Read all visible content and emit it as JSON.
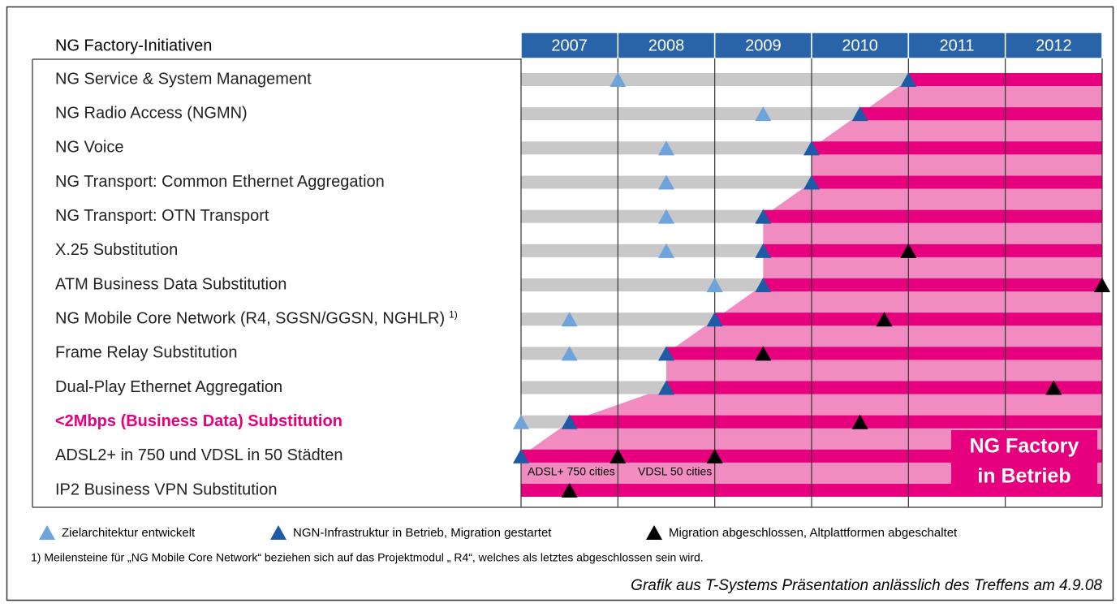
{
  "title": "NG Factory-Initiativen",
  "years": [
    2007,
    2008,
    2009,
    2010,
    2011,
    2012
  ],
  "rows": [
    {
      "label": "NG Service & System Management",
      "milestones": [
        {
          "type": "target",
          "year": 2008
        },
        {
          "type": "start",
          "year": 2011
        }
      ]
    },
    {
      "label": "NG Radio Access (NGMN)",
      "milestones": [
        {
          "type": "target",
          "year": 2009.5
        },
        {
          "type": "start",
          "year": 2010.5
        }
      ]
    },
    {
      "label": "NG Voice",
      "milestones": [
        {
          "type": "target",
          "year": 2008.5
        },
        {
          "type": "start",
          "year": 2010
        }
      ]
    },
    {
      "label": "NG Transport: Common Ethernet Aggregation",
      "milestones": [
        {
          "type": "target",
          "year": 2008.5
        },
        {
          "type": "start",
          "year": 2010
        }
      ]
    },
    {
      "label": "NG Transport: OTN Transport",
      "milestones": [
        {
          "type": "target",
          "year": 2008.5
        },
        {
          "type": "start",
          "year": 2009.5
        }
      ]
    },
    {
      "label": "X.25 Substitution",
      "milestones": [
        {
          "type": "target",
          "year": 2008.5
        },
        {
          "type": "start",
          "year": 2009.5
        },
        {
          "type": "done",
          "year": 2011
        }
      ]
    },
    {
      "label": "ATM Business Data Substitution",
      "milestones": [
        {
          "type": "target",
          "year": 2009
        },
        {
          "type": "start",
          "year": 2009.5
        },
        {
          "type": "done",
          "year": 2013
        }
      ]
    },
    {
      "label": "NG Mobile Core Network (R4, SGSN/GGSN, NGHLR)",
      "note": "1)",
      "milestones": [
        {
          "type": "target",
          "year": 2007.5
        },
        {
          "type": "start",
          "year": 2009
        },
        {
          "type": "done",
          "year": 2010.75
        }
      ]
    },
    {
      "label": "Frame Relay Substitution",
      "milestones": [
        {
          "type": "target",
          "year": 2007.5
        },
        {
          "type": "start",
          "year": 2008.5
        },
        {
          "type": "done",
          "year": 2009.5
        }
      ]
    },
    {
      "label": "Dual-Play Ethernet Aggregation",
      "milestones": [
        {
          "type": "start",
          "year": 2008.5
        },
        {
          "type": "done",
          "year": 2012.5
        }
      ]
    },
    {
      "label": "<2Mbps (Business Data) Substitution",
      "highlight": true,
      "milestones": [
        {
          "type": "target",
          "year": 2007
        },
        {
          "type": "start",
          "year": 2007.5
        },
        {
          "type": "done",
          "year": 2010.5
        }
      ]
    },
    {
      "label": "ADSL2+ in 750 und VDSL in 50 Städten",
      "annotations": [
        "ADSL+ 750 cities",
        "VDSL 50 cities"
      ],
      "milestones": [
        {
          "type": "start",
          "year": 2007
        },
        {
          "type": "done",
          "year": 2008
        },
        {
          "type": "done",
          "year": 2009
        }
      ]
    },
    {
      "label": "IP2 Business VPN Substitution",
      "milestones": [
        {
          "type": "done",
          "year": 2007.5
        }
      ]
    }
  ],
  "box": [
    "NG Factory",
    "in Betrieb"
  ],
  "legend": [
    {
      "type": "target",
      "text": "Zielarchitektur entwickelt"
    },
    {
      "type": "start",
      "text": "NGN-Infrastruktur in Betrieb, Migration gestartet"
    },
    {
      "type": "done",
      "text": "Migration abgeschlossen, Altplattformen abgeschaltet"
    }
  ],
  "footnote": "1) Meilensteine für „NG Mobile Core Network“ beziehen sich auf das Projektmodul „ R4“, welches als letztes abgeschlossen sein wird.",
  "credit": "Grafik aus T-Systems Präsentation anlässlich des Treffens am 4.9.08"
}
